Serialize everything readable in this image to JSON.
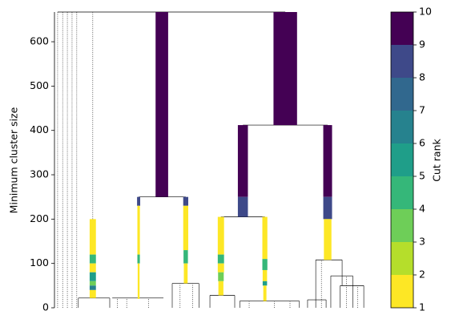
{
  "chart_data": {
    "type": "condensed-tree",
    "ylabel": "Minimum cluster size",
    "ylim": [
      0,
      667
    ],
    "yticks": [
      0,
      100,
      200,
      300,
      400,
      500,
      600
    ],
    "xlim": [
      0,
      100
    ],
    "colorbar": {
      "label": "Cut rank",
      "clim": [
        1,
        10
      ],
      "cticks": [
        1,
        2,
        3,
        4,
        5,
        6,
        7,
        8,
        9,
        10
      ],
      "colors": [
        "#fde725",
        "#b5de2b",
        "#6ece58",
        "#35b779",
        "#1f9e89",
        "#26828e",
        "#31688e",
        "#3e4989",
        "#440154"
      ]
    },
    "segments": [
      {
        "x": 73.5,
        "bottom": 412,
        "top": 667,
        "rank": 9,
        "width": 7.5
      },
      {
        "x": 34.2,
        "bottom": 250,
        "top": 667,
        "rank": 9,
        "width": 4
      },
      {
        "x": 60,
        "bottom": 250,
        "top": 412,
        "rank": 9,
        "width": 3.2
      },
      {
        "x": 60,
        "bottom": 205,
        "top": 250,
        "rank": 8,
        "width": 3.2
      },
      {
        "x": 87,
        "bottom": 250,
        "top": 412,
        "rank": 9,
        "width": 2.8
      },
      {
        "x": 87,
        "bottom": 200,
        "top": 250,
        "rank": 8,
        "width": 2.8
      },
      {
        "x": 87,
        "bottom": 108,
        "top": 200,
        "rank": 1,
        "width": 2.4
      },
      {
        "x": 26.8,
        "bottom": 230,
        "top": 250,
        "rank": 8,
        "width": 1
      },
      {
        "x": 26.8,
        "bottom": 120,
        "top": 230,
        "rank": 1,
        "width": 0.8
      },
      {
        "x": 26.8,
        "bottom": 100,
        "top": 120,
        "rank": 4,
        "width": 0.8
      },
      {
        "x": 26.8,
        "bottom": 20,
        "top": 100,
        "rank": 1,
        "width": 0.6
      },
      {
        "x": 41.8,
        "bottom": 230,
        "top": 250,
        "rank": 8,
        "width": 1.6
      },
      {
        "x": 41.8,
        "bottom": 130,
        "top": 230,
        "rank": 1,
        "width": 1.6
      },
      {
        "x": 41.8,
        "bottom": 100,
        "top": 130,
        "rank": 4,
        "width": 1.4
      },
      {
        "x": 41.8,
        "bottom": 55,
        "top": 100,
        "rank": 1,
        "width": 1.2
      },
      {
        "x": 12.2,
        "bottom": 120,
        "top": 200,
        "rank": 1,
        "width": 2
      },
      {
        "x": 12.2,
        "bottom": 100,
        "top": 120,
        "rank": 4,
        "width": 2
      },
      {
        "x": 12.2,
        "bottom": 80,
        "top": 100,
        "rank": 1,
        "width": 2
      },
      {
        "x": 12.2,
        "bottom": 60,
        "top": 80,
        "rank": 5,
        "width": 2
      },
      {
        "x": 12.2,
        "bottom": 50,
        "top": 60,
        "rank": 3,
        "width": 2
      },
      {
        "x": 12.2,
        "bottom": 40,
        "top": 50,
        "rank": 6,
        "width": 2
      },
      {
        "x": 12.2,
        "bottom": 22,
        "top": 40,
        "rank": 1,
        "width": 2
      },
      {
        "x": 53,
        "bottom": 120,
        "top": 205,
        "rank": 1,
        "width": 2
      },
      {
        "x": 53,
        "bottom": 100,
        "top": 120,
        "rank": 4,
        "width": 2
      },
      {
        "x": 53,
        "bottom": 80,
        "top": 100,
        "rank": 1,
        "width": 2
      },
      {
        "x": 53,
        "bottom": 60,
        "top": 80,
        "rank": 3,
        "width": 1.8
      },
      {
        "x": 53,
        "bottom": 28,
        "top": 60,
        "rank": 1,
        "width": 1.6
      },
      {
        "x": 67,
        "bottom": 110,
        "top": 205,
        "rank": 1,
        "width": 1.6
      },
      {
        "x": 67,
        "bottom": 85,
        "top": 110,
        "rank": 4,
        "width": 1.6
      },
      {
        "x": 67,
        "bottom": 60,
        "top": 85,
        "rank": 1,
        "width": 1.4
      },
      {
        "x": 67,
        "bottom": 50,
        "top": 60,
        "rank": 5,
        "width": 1.4
      },
      {
        "x": 67,
        "bottom": 15,
        "top": 50,
        "rank": 1,
        "width": 1
      }
    ],
    "links": [
      {
        "x0": 1.0,
        "x1": 73.5,
        "y": 667
      },
      {
        "x0": 60,
        "x1": 87,
        "y": 412
      },
      {
        "x0": 26.8,
        "x1": 41.8,
        "y": 250
      },
      {
        "x0": 53,
        "x1": 67,
        "y": 205
      },
      {
        "x0": 83.2,
        "x1": 91.6,
        "y": 108
      },
      {
        "x0": 88,
        "x1": 95,
        "y": 72
      },
      {
        "x0": 91,
        "x1": 98.5,
        "y": 50
      },
      {
        "x0": 37.5,
        "x1": 46,
        "y": 55
      },
      {
        "x0": 7.6,
        "x1": 17.6,
        "y": 22
      },
      {
        "x0": 18.4,
        "x1": 34.7,
        "y": 22
      },
      {
        "x0": 49.5,
        "x1": 57.4,
        "y": 28
      },
      {
        "x0": 59,
        "x1": 78,
        "y": 15
      },
      {
        "x0": 80.6,
        "x1": 86.5,
        "y": 18
      }
    ],
    "stems": [
      {
        "x": 83.2,
        "bottom": 0,
        "top": 108
      },
      {
        "x": 91.6,
        "bottom": 50,
        "top": 108
      },
      {
        "x": 88,
        "bottom": 0,
        "top": 72
      },
      {
        "x": 95,
        "bottom": 0,
        "top": 72
      },
      {
        "x": 91,
        "bottom": 0,
        "top": 50
      },
      {
        "x": 98.5,
        "bottom": 0,
        "top": 50
      },
      {
        "x": 37.5,
        "bottom": 0,
        "top": 55
      },
      {
        "x": 46,
        "bottom": 0,
        "top": 55
      },
      {
        "x": 7.6,
        "bottom": 0,
        "top": 22
      },
      {
        "x": 17.6,
        "bottom": 0,
        "top": 22
      },
      {
        "x": 49.5,
        "bottom": 0,
        "top": 28
      },
      {
        "x": 57.4,
        "bottom": 0,
        "top": 28
      },
      {
        "x": 59,
        "bottom": 0,
        "top": 15
      },
      {
        "x": 78,
        "bottom": 0,
        "top": 15
      },
      {
        "x": 80.6,
        "bottom": 0,
        "top": 18
      },
      {
        "x": 86.5,
        "bottom": 0,
        "top": 18
      }
    ],
    "dotted_stems": [
      {
        "x": 1.0,
        "bottom": 0,
        "top": 667
      },
      {
        "x": 2.6,
        "bottom": 0,
        "top": 667
      },
      {
        "x": 4.1,
        "bottom": 0,
        "top": 667
      },
      {
        "x": 5.6,
        "bottom": 0,
        "top": 667
      },
      {
        "x": 7.1,
        "bottom": 0,
        "top": 667
      },
      {
        "x": 12.2,
        "bottom": 200,
        "top": 667
      },
      {
        "x": 20,
        "bottom": 0,
        "top": 22
      },
      {
        "x": 23,
        "bottom": 0,
        "top": 22
      },
      {
        "x": 30,
        "bottom": 0,
        "top": 22
      },
      {
        "x": 40,
        "bottom": 0,
        "top": 55
      },
      {
        "x": 44,
        "bottom": 0,
        "top": 55
      },
      {
        "x": 62,
        "bottom": 0,
        "top": 15
      },
      {
        "x": 70,
        "bottom": 0,
        "top": 15
      },
      {
        "x": 75,
        "bottom": 0,
        "top": 15
      },
      {
        "x": 85,
        "bottom": 0,
        "top": 108
      },
      {
        "x": 93,
        "bottom": 0,
        "top": 72
      },
      {
        "x": 96.5,
        "bottom": 0,
        "top": 50
      }
    ]
  }
}
